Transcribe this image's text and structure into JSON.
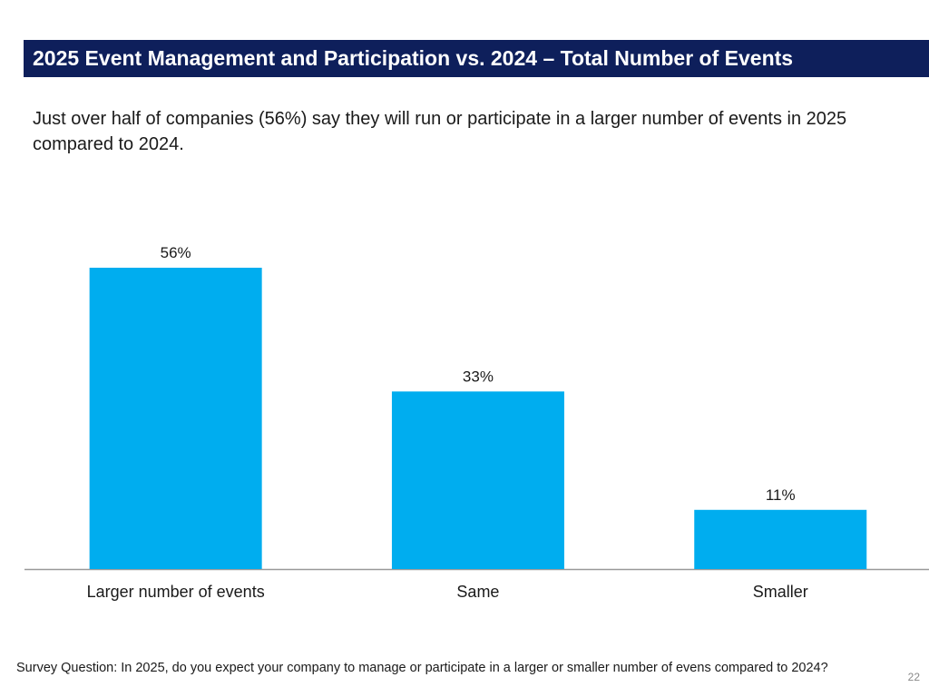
{
  "slide": {
    "title": "2025 Event Management and Participation vs. 2024 – Total Number of Events",
    "subtitle": "Just over half of companies (56%) say they will run or participate in a larger number of events in 2025 compared to 2024.",
    "footnote": "Survey Question: In 2025, do you expect your company to manage or participate in a larger or smaller number of evens compared to 2024?",
    "page_number": "22"
  },
  "colors": {
    "title_bg": "#0e1f5b",
    "bar": "#00adef",
    "axis": "#999999"
  },
  "chart_data": {
    "type": "bar",
    "title": "",
    "xlabel": "",
    "ylabel": "",
    "categories": [
      "Larger number of events",
      "Same",
      "Smaller"
    ],
    "values": [
      56,
      33,
      11
    ],
    "data_labels": [
      "56%",
      "33%",
      "11%"
    ],
    "ylim": [
      0,
      60
    ],
    "grid": false,
    "legend": "none"
  }
}
